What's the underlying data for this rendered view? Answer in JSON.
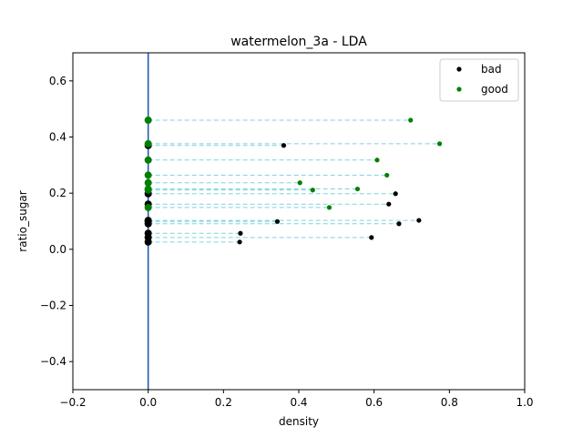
{
  "chart_data": {
    "type": "scatter",
    "title": "watermelon_3a - LDA",
    "xlabel": "density",
    "ylabel": "ratio_sugar",
    "xlim": [
      -0.2,
      1.0
    ],
    "ylim": [
      -0.5,
      0.7
    ],
    "xticks": [
      -0.2,
      0.0,
      0.2,
      0.4,
      0.6,
      0.8,
      1.0
    ],
    "xtick_labels": [
      "−0.2",
      "0.0",
      "0.2",
      "0.4",
      "0.6",
      "0.8",
      "1.0"
    ],
    "yticks": [
      -0.4,
      -0.2,
      0.0,
      0.2,
      0.4,
      0.6
    ],
    "ytick_labels": [
      "−0.4",
      "−0.2",
      "0.0",
      "0.2",
      "0.4",
      "0.6"
    ],
    "legend_position": "top-right",
    "projection_line": {
      "x": 0.0,
      "color": "#1f5fb0"
    },
    "projection_color": "#7fd3dc",
    "series": [
      {
        "name": "bad",
        "color": "#000000",
        "points": [
          {
            "x": 0.36,
            "y": 0.37
          },
          {
            "x": 0.657,
            "y": 0.198
          },
          {
            "x": 0.639,
            "y": 0.161
          },
          {
            "x": 0.719,
            "y": 0.103
          },
          {
            "x": 0.666,
            "y": 0.091
          },
          {
            "x": 0.343,
            "y": 0.099
          },
          {
            "x": 0.245,
            "y": 0.057
          },
          {
            "x": 0.593,
            "y": 0.042
          },
          {
            "x": 0.243,
            "y": 0.026
          }
        ]
      },
      {
        "name": "good",
        "color": "#008000",
        "points": [
          {
            "x": 0.697,
            "y": 0.46
          },
          {
            "x": 0.774,
            "y": 0.376
          },
          {
            "x": 0.608,
            "y": 0.318
          },
          {
            "x": 0.634,
            "y": 0.264
          },
          {
            "x": 0.403,
            "y": 0.237
          },
          {
            "x": 0.556,
            "y": 0.215
          },
          {
            "x": 0.437,
            "y": 0.211
          },
          {
            "x": 0.481,
            "y": 0.149
          }
        ]
      }
    ]
  }
}
